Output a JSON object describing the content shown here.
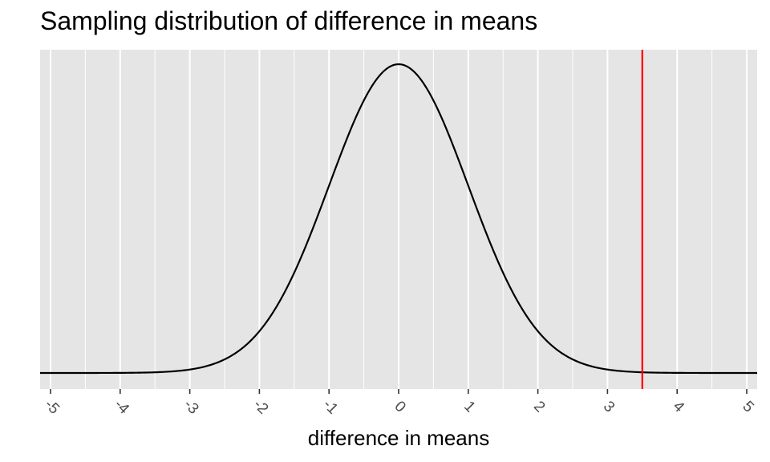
{
  "chart_data": {
    "type": "line",
    "title": "Sampling distribution of difference in means",
    "xlabel": "difference in means",
    "ylabel": "",
    "xlim": [
      -5.15,
      5.15
    ],
    "ylim": [
      0,
      0.399
    ],
    "x_ticks": [
      -5,
      -4,
      -3,
      -2,
      -1,
      0,
      1,
      2,
      3,
      4,
      5
    ],
    "x_tick_labels": [
      "-5",
      "-4",
      "-3",
      "-2",
      "-1",
      "0",
      "1",
      "2",
      "3",
      "4",
      "5"
    ],
    "series": [
      {
        "distribution": "normal",
        "mean": 0,
        "sd": 1,
        "color": "#000000"
      }
    ],
    "vline": {
      "x": 3.5,
      "color": "#ff0000"
    },
    "grid": true,
    "panel_background": "#e5e5e5",
    "grid_color": "#ffffff"
  }
}
